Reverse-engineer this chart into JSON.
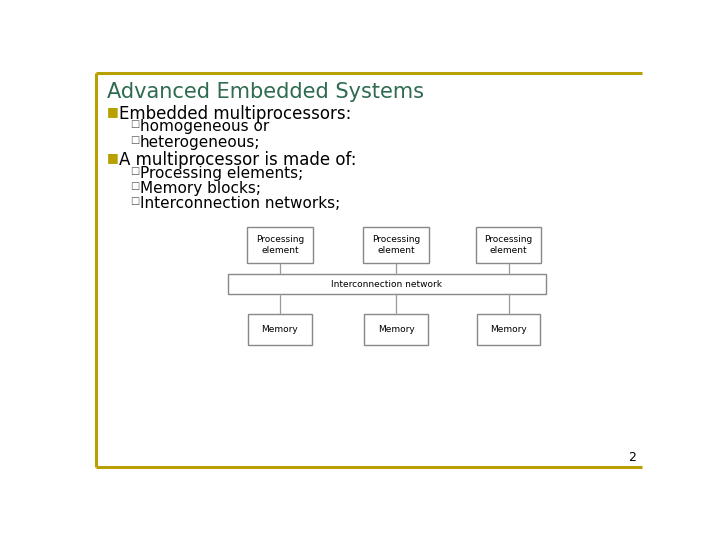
{
  "title": "Advanced Embedded Systems",
  "title_color": "#2E6B4F",
  "title_fontsize": 15,
  "background_color": "#FFFFFF",
  "border_color": "#B8A000",
  "bullet_color": "#B8A000",
  "text_color": "#000000",
  "bullet1_text": "Embedded multiprocessors:",
  "bullet1_sub": [
    "homogeneous or",
    "heterogeneous;"
  ],
  "bullet2_text": "A multiprocessor is made of:",
  "bullet2_sub": [
    "Processing elements;",
    "Memory blocks;",
    "Interconnection networks;"
  ],
  "box_pe_labels": [
    "Processing\nelement",
    "Processing\nelement",
    "Processing\nelement"
  ],
  "box_mem_labels": [
    "Memory",
    "Memory",
    "Memory"
  ],
  "box_interconnect_label": "Interconnection network",
  "page_number": "2",
  "box_edge_color": "#888888",
  "box_face_color": "#FFFFFF",
  "diagram_font_color": "#000000",
  "diagram_fontsize": 6.5,
  "bullet_main_fontsize": 12,
  "bullet_sub_fontsize": 11,
  "sub_bullet_color": "#555555"
}
